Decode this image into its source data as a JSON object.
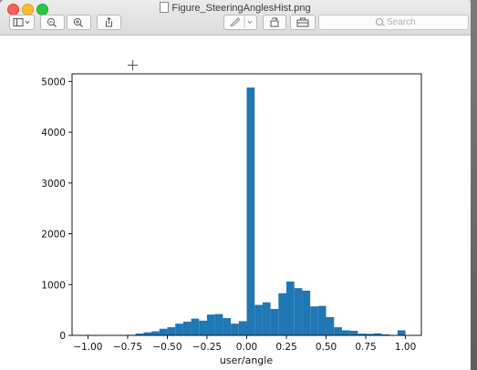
{
  "window": {
    "title": "Figure_SteeringAnglesHist.png"
  },
  "toolbar": {
    "sidebar_icon": "sidebar-toggle-icon",
    "zoom_out_icon": "zoom-out-icon",
    "zoom_in_icon": "zoom-in-icon",
    "share_icon": "share-icon",
    "markup_icon": "markup-pen-icon",
    "rotate_icon": "rotate-icon",
    "toolbox_icon": "toolbox-icon"
  },
  "search": {
    "placeholder": "Search"
  },
  "chart_data": {
    "type": "bar",
    "xlabel": "user/angle",
    "ylabel": "",
    "xlim": [
      -1.1,
      1.1
    ],
    "ylim": [
      0,
      5150
    ],
    "xticks": [
      "−1.00",
      "−0.75",
      "−0.50",
      "−0.25",
      "0.00",
      "0.25",
      "0.50",
      "0.75",
      "1.00"
    ],
    "yticks": [
      "0",
      "1000",
      "2000",
      "3000",
      "4000",
      "5000"
    ],
    "bar_color": "#1f77b4",
    "bin_width": 0.05,
    "bin_starts": [
      -1.0,
      -0.95,
      -0.9,
      -0.85,
      -0.8,
      -0.75,
      -0.7,
      -0.65,
      -0.6,
      -0.55,
      -0.5,
      -0.45,
      -0.4,
      -0.35,
      -0.3,
      -0.25,
      -0.2,
      -0.15,
      -0.1,
      -0.05,
      0.0,
      0.05,
      0.1,
      0.15,
      0.2,
      0.25,
      0.3,
      0.35,
      0.4,
      0.45,
      0.5,
      0.55,
      0.6,
      0.65,
      0.7,
      0.75,
      0.8,
      0.85,
      0.9,
      0.95
    ],
    "values": [
      5,
      5,
      5,
      5,
      8,
      10,
      35,
      60,
      80,
      130,
      160,
      230,
      270,
      330,
      290,
      410,
      420,
      340,
      230,
      280,
      4880,
      600,
      650,
      520,
      830,
      1060,
      930,
      880,
      570,
      580,
      360,
      160,
      100,
      90,
      35,
      30,
      40,
      20,
      5,
      100
    ]
  }
}
